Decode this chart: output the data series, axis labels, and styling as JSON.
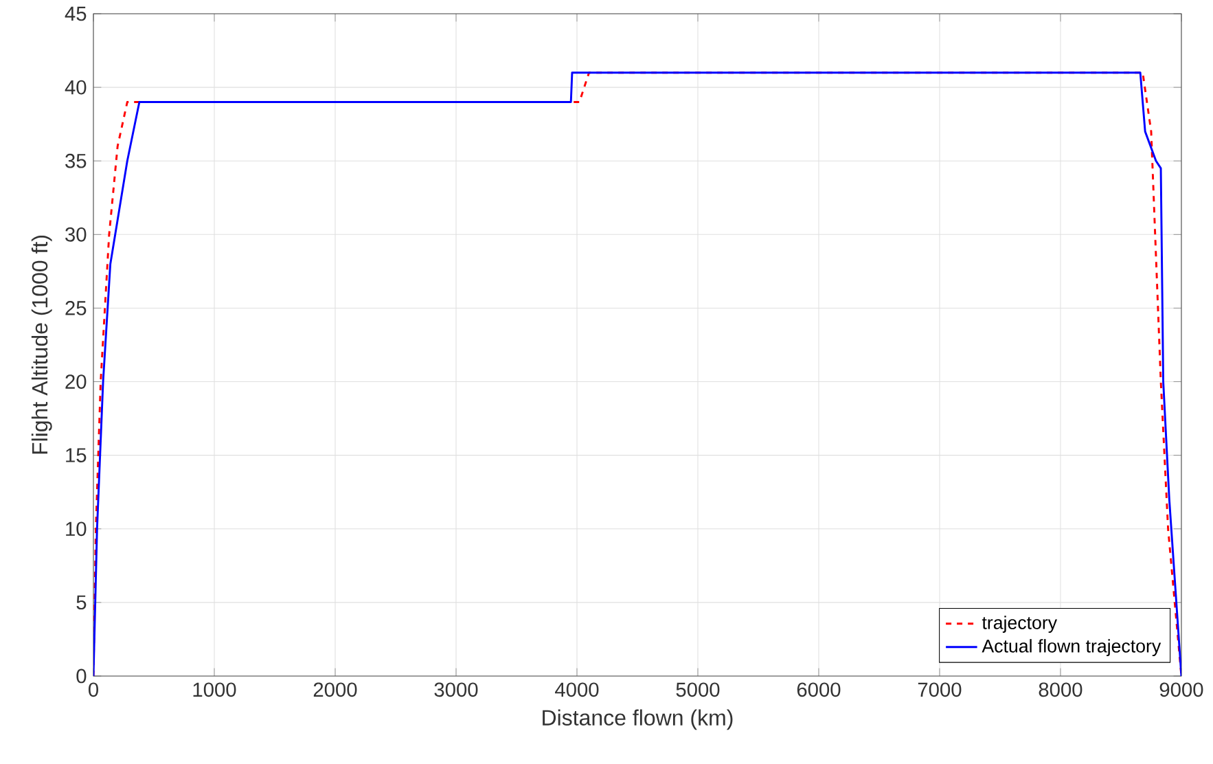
{
  "chart_data": {
    "type": "line",
    "xlabel": "Distance flown (km)",
    "ylabel": "Flight Altitude (1000 ft)",
    "xlim": [
      0,
      9000
    ],
    "xticks": [
      0,
      1000,
      2000,
      3000,
      4000,
      5000,
      6000,
      7000,
      8000,
      9000
    ],
    "ylim": [
      0,
      45
    ],
    "yticks": [
      0,
      5,
      10,
      15,
      20,
      25,
      30,
      35,
      40,
      45
    ],
    "grid": true,
    "legend": "bottom right",
    "series": [
      {
        "name": "trajectory",
        "color": "#ff0000",
        "line_style": "dashed",
        "x": [
          0,
          20,
          60,
          130,
          200,
          280,
          4020,
          4100,
          8680,
          8750,
          8830,
          8890,
          9000
        ],
        "values": [
          0,
          10,
          20,
          30,
          36,
          39,
          39,
          41,
          41,
          37,
          20,
          10,
          0
        ]
      },
      {
        "name": "Actual flown trajectory",
        "color": "#0000ff",
        "line_style": "solid",
        "x": [
          0,
          30,
          80,
          140,
          200,
          280,
          380,
          3950,
          3960,
          8660,
          8700,
          8790,
          8830,
          8850,
          8900,
          9000
        ],
        "values": [
          0,
          10,
          20,
          28,
          31,
          35,
          39,
          39,
          41,
          41,
          37,
          35,
          34.5,
          20,
          12,
          0
        ]
      }
    ]
  }
}
